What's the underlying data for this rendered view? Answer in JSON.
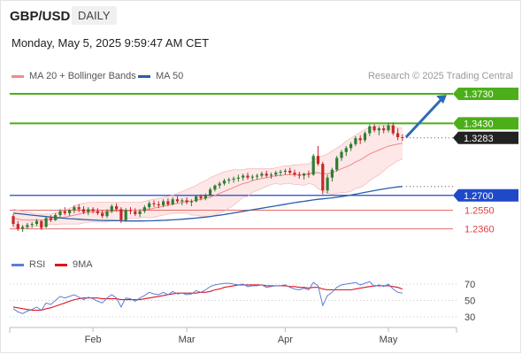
{
  "header": {
    "instrument": "GBP/USD",
    "timeframe": "DAILY",
    "datetime": "Monday, May 5, 2025 9:59:47 AM CET"
  },
  "legend": {
    "bb": {
      "label": "MA 20 + Bollinger Bands",
      "color": "#f08a8a"
    },
    "ma50": {
      "label": "MA 50",
      "color": "#2a5ea8"
    },
    "credit": "Research © 2025 Trading Central"
  },
  "rsi_legend": {
    "rsi": {
      "label": "RSI",
      "color": "#5b7fd6"
    },
    "ma9": {
      "label": "9MA",
      "color": "#e0151c"
    }
  },
  "colors": {
    "bull": "#2e7d32",
    "bear": "#c62828",
    "resistance": "#4caf1a",
    "support": "#1f49c8",
    "minor_support": "#e86b6b",
    "arrow": "#2d6bb5",
    "band_fill": "#fde4e4",
    "last_bg": "#222222"
  },
  "chart_data": {
    "type": "candlestick",
    "x_ticks": [
      "Feb",
      "Mar",
      "Apr",
      "May"
    ],
    "ohlc": [
      [
        1.249,
        1.251,
        1.238,
        1.241
      ],
      [
        1.241,
        1.244,
        1.234,
        1.236
      ],
      [
        1.236,
        1.24,
        1.233,
        1.238
      ],
      [
        1.238,
        1.242,
        1.236,
        1.24
      ],
      [
        1.24,
        1.243,
        1.237,
        1.241
      ],
      [
        1.241,
        1.246,
        1.239,
        1.244
      ],
      [
        1.244,
        1.245,
        1.235,
        1.237
      ],
      [
        1.238,
        1.248,
        1.237,
        1.247
      ],
      [
        1.247,
        1.25,
        1.243,
        1.245
      ],
      [
        1.245,
        1.252,
        1.244,
        1.25
      ],
      [
        1.25,
        1.256,
        1.248,
        1.254
      ],
      [
        1.254,
        1.258,
        1.25,
        1.252
      ],
      [
        1.252,
        1.256,
        1.249,
        1.255
      ],
      [
        1.255,
        1.26,
        1.252,
        1.258
      ],
      [
        1.258,
        1.261,
        1.253,
        1.256
      ],
      [
        1.256,
        1.259,
        1.251,
        1.253
      ],
      [
        1.253,
        1.258,
        1.25,
        1.256
      ],
      [
        1.256,
        1.258,
        1.252,
        1.254
      ],
      [
        1.254,
        1.257,
        1.25,
        1.252
      ],
      [
        1.252,
        1.255,
        1.247,
        1.249
      ],
      [
        1.249,
        1.256,
        1.247,
        1.254
      ],
      [
        1.254,
        1.261,
        1.252,
        1.259
      ],
      [
        1.259,
        1.262,
        1.254,
        1.256
      ],
      [
        1.256,
        1.258,
        1.242,
        1.245
      ],
      [
        1.245,
        1.257,
        1.243,
        1.255
      ],
      [
        1.255,
        1.258,
        1.251,
        1.254
      ],
      [
        1.254,
        1.257,
        1.249,
        1.251
      ],
      [
        1.251,
        1.256,
        1.248,
        1.254
      ],
      [
        1.254,
        1.26,
        1.252,
        1.258
      ],
      [
        1.258,
        1.264,
        1.256,
        1.262
      ],
      [
        1.262,
        1.265,
        1.258,
        1.261
      ],
      [
        1.261,
        1.264,
        1.257,
        1.26
      ],
      [
        1.26,
        1.266,
        1.258,
        1.264
      ],
      [
        1.264,
        1.267,
        1.259,
        1.261
      ],
      [
        1.261,
        1.268,
        1.26,
        1.266
      ],
      [
        1.266,
        1.269,
        1.262,
        1.264
      ],
      [
        1.264,
        1.267,
        1.26,
        1.265
      ],
      [
        1.265,
        1.268,
        1.261,
        1.263
      ],
      [
        1.263,
        1.266,
        1.259,
        1.264
      ],
      [
        1.264,
        1.27,
        1.263,
        1.269
      ],
      [
        1.269,
        1.271,
        1.265,
        1.267
      ],
      [
        1.267,
        1.272,
        1.265,
        1.27
      ],
      [
        1.27,
        1.278,
        1.269,
        1.276
      ],
      [
        1.276,
        1.281,
        1.274,
        1.28
      ],
      [
        1.28,
        1.284,
        1.277,
        1.282
      ],
      [
        1.282,
        1.287,
        1.28,
        1.285
      ],
      [
        1.285,
        1.288,
        1.282,
        1.286
      ],
      [
        1.286,
        1.289,
        1.283,
        1.287
      ],
      [
        1.287,
        1.291,
        1.284,
        1.288
      ],
      [
        1.288,
        1.292,
        1.285,
        1.29
      ],
      [
        1.29,
        1.293,
        1.286,
        1.288
      ],
      [
        1.288,
        1.291,
        1.285,
        1.289
      ],
      [
        1.289,
        1.292,
        1.286,
        1.29
      ],
      [
        1.29,
        1.294,
        1.288,
        1.292
      ],
      [
        1.292,
        1.295,
        1.288,
        1.29
      ],
      [
        1.29,
        1.293,
        1.287,
        1.291
      ],
      [
        1.291,
        1.295,
        1.289,
        1.293
      ],
      [
        1.293,
        1.296,
        1.29,
        1.294
      ],
      [
        1.294,
        1.297,
        1.291,
        1.295
      ],
      [
        1.295,
        1.298,
        1.291,
        1.293
      ],
      [
        1.293,
        1.296,
        1.289,
        1.291
      ],
      [
        1.291,
        1.294,
        1.287,
        1.29
      ],
      [
        1.29,
        1.293,
        1.286,
        1.292
      ],
      [
        1.292,
        1.295,
        1.288,
        1.291
      ],
      [
        1.291,
        1.312,
        1.29,
        1.31
      ],
      [
        1.31,
        1.32,
        1.3,
        1.302
      ],
      [
        1.302,
        1.304,
        1.271,
        1.275
      ],
      [
        1.275,
        1.291,
        1.272,
        1.288
      ],
      [
        1.288,
        1.298,
        1.284,
        1.296
      ],
      [
        1.296,
        1.31,
        1.294,
        1.308
      ],
      [
        1.308,
        1.316,
        1.305,
        1.314
      ],
      [
        1.314,
        1.32,
        1.31,
        1.318
      ],
      [
        1.318,
        1.324,
        1.315,
        1.322
      ],
      [
        1.322,
        1.33,
        1.32,
        1.328
      ],
      [
        1.328,
        1.331,
        1.322,
        1.326
      ],
      [
        1.326,
        1.335,
        1.324,
        1.333
      ],
      [
        1.333,
        1.342,
        1.33,
        1.34
      ],
      [
        1.34,
        1.342,
        1.334,
        1.336
      ],
      [
        1.336,
        1.34,
        1.331,
        1.338
      ],
      [
        1.338,
        1.341,
        1.333,
        1.336
      ],
      [
        1.336,
        1.344,
        1.334,
        1.341
      ],
      [
        1.341,
        1.344,
        1.331,
        1.333
      ],
      [
        1.333,
        1.338,
        1.326,
        1.329
      ],
      [
        1.329,
        1.332,
        1.325,
        1.3283
      ]
    ],
    "ma20": [
      1.247,
      1.246,
      1.245,
      1.245,
      1.245,
      1.245,
      1.245,
      1.245,
      1.246,
      1.246,
      1.247,
      1.248,
      1.249,
      1.25,
      1.251,
      1.252,
      1.253,
      1.253,
      1.253,
      1.253,
      1.253,
      1.254,
      1.254,
      1.254,
      1.254,
      1.255,
      1.255,
      1.255,
      1.256,
      1.256,
      1.257,
      1.258,
      1.259,
      1.26,
      1.261,
      1.262,
      1.263,
      1.264,
      1.264,
      1.265,
      1.266,
      1.267,
      1.268,
      1.27,
      1.272,
      1.274,
      1.276,
      1.278,
      1.28,
      1.282,
      1.283,
      1.285,
      1.286,
      1.287,
      1.288,
      1.289,
      1.29,
      1.29,
      1.291,
      1.291,
      1.291,
      1.291,
      1.291,
      1.292,
      1.293,
      1.293,
      1.292,
      1.292,
      1.293,
      1.295,
      1.297,
      1.299,
      1.301,
      1.304,
      1.306,
      1.309,
      1.312,
      1.314,
      1.316,
      1.318,
      1.32,
      1.321,
      1.322,
      1.3228
    ],
    "bb_upper": [
      1.256,
      1.255,
      1.254,
      1.253,
      1.252,
      1.251,
      1.251,
      1.251,
      1.251,
      1.252,
      1.253,
      1.255,
      1.257,
      1.259,
      1.261,
      1.262,
      1.263,
      1.263,
      1.263,
      1.263,
      1.263,
      1.263,
      1.263,
      1.263,
      1.263,
      1.263,
      1.263,
      1.263,
      1.264,
      1.265,
      1.266,
      1.267,
      1.268,
      1.269,
      1.27,
      1.272,
      1.274,
      1.276,
      1.278,
      1.28,
      1.283,
      1.285,
      1.288,
      1.29,
      1.292,
      1.294,
      1.295,
      1.296,
      1.296,
      1.296,
      1.297,
      1.297,
      1.297,
      1.297,
      1.297,
      1.297,
      1.298,
      1.299,
      1.3,
      1.3,
      1.301,
      1.301,
      1.302,
      1.302,
      1.305,
      1.309,
      1.31,
      1.312,
      1.315,
      1.318,
      1.321,
      1.325,
      1.328,
      1.331,
      1.334,
      1.337,
      1.339,
      1.34,
      1.341,
      1.341,
      1.341,
      1.34,
      1.339,
      1.338
    ],
    "bb_lower": [
      1.238,
      1.237,
      1.236,
      1.237,
      1.238,
      1.239,
      1.239,
      1.239,
      1.241,
      1.24,
      1.241,
      1.241,
      1.241,
      1.241,
      1.241,
      1.242,
      1.243,
      1.243,
      1.243,
      1.243,
      1.243,
      1.245,
      1.245,
      1.245,
      1.245,
      1.247,
      1.247,
      1.247,
      1.248,
      1.247,
      1.248,
      1.249,
      1.25,
      1.251,
      1.252,
      1.252,
      1.252,
      1.252,
      1.25,
      1.25,
      1.249,
      1.249,
      1.248,
      1.25,
      1.252,
      1.254,
      1.257,
      1.26,
      1.264,
      1.268,
      1.269,
      1.273,
      1.275,
      1.277,
      1.279,
      1.281,
      1.282,
      1.281,
      1.282,
      1.282,
      1.281,
      1.281,
      1.28,
      1.282,
      1.281,
      1.277,
      1.274,
      1.272,
      1.271,
      1.272,
      1.273,
      1.273,
      1.274,
      1.277,
      1.278,
      1.281,
      1.285,
      1.288,
      1.291,
      1.295,
      1.299,
      1.302,
      1.305,
      1.307
    ],
    "ma50": [
      1.252,
      1.2515,
      1.251,
      1.2505,
      1.25,
      1.2495,
      1.249,
      1.2485,
      1.248,
      1.2476,
      1.2472,
      1.2468,
      1.2464,
      1.2461,
      1.2458,
      1.2455,
      1.2452,
      1.245,
      1.2448,
      1.2446,
      1.2445,
      1.2444,
      1.2443,
      1.2442,
      1.2441,
      1.244,
      1.244,
      1.244,
      1.2441,
      1.2442,
      1.2443,
      1.2445,
      1.2447,
      1.2449,
      1.2452,
      1.2455,
      1.2458,
      1.2462,
      1.2466,
      1.247,
      1.2475,
      1.248,
      1.2486,
      1.2492,
      1.2499,
      1.2506,
      1.2514,
      1.2522,
      1.253,
      1.2538,
      1.2546,
      1.2554,
      1.2562,
      1.257,
      1.2578,
      1.2586,
      1.2594,
      1.2602,
      1.261,
      1.2618,
      1.2626,
      1.2633,
      1.264,
      1.2647,
      1.2654,
      1.266,
      1.2665,
      1.267,
      1.2675,
      1.2681,
      1.2688,
      1.2695,
      1.2703,
      1.2712,
      1.2721,
      1.273,
      1.2739,
      1.2748,
      1.2757,
      1.2765,
      1.2773,
      1.278,
      1.2786,
      1.279
    ],
    "rsi": [
      40,
      36,
      34,
      37,
      39,
      42,
      38,
      47,
      45,
      50,
      55,
      53,
      55,
      57,
      54,
      51,
      54,
      52,
      49,
      47,
      53,
      57,
      53,
      42,
      53,
      52,
      49,
      53,
      56,
      60,
      58,
      57,
      60,
      57,
      61,
      58,
      59,
      57,
      58,
      62,
      60,
      63,
      67,
      69,
      70,
      71,
      71,
      70,
      69,
      70,
      67,
      68,
      68,
      69,
      66,
      67,
      68,
      68,
      69,
      66,
      64,
      63,
      65,
      63,
      72,
      68,
      44,
      56,
      60,
      66,
      69,
      70,
      71,
      72,
      69,
      71,
      73,
      67,
      69,
      67,
      70,
      64,
      60,
      59
    ],
    "rsi_ma": [
      42,
      41,
      40,
      39,
      38,
      38,
      38,
      40,
      41,
      43,
      45,
      47,
      49,
      51,
      52,
      53,
      53,
      53,
      53,
      52,
      52,
      52,
      52,
      51,
      51,
      51,
      51,
      51,
      52,
      53,
      54,
      55,
      56,
      57,
      58,
      59,
      59,
      59,
      59,
      59,
      60,
      60,
      61,
      63,
      64,
      66,
      67,
      68,
      69,
      69,
      69,
      69,
      69,
      69,
      68,
      68,
      68,
      68,
      68,
      67,
      67,
      66,
      66,
      65,
      66,
      66,
      64,
      63,
      63,
      63,
      63,
      63,
      63,
      64,
      65,
      66,
      67,
      68,
      68,
      68,
      68,
      67,
      66,
      64
    ],
    "levels": [
      {
        "label": "1.3730",
        "value": 1.373,
        "kind": "resistance"
      },
      {
        "label": "1.3430",
        "value": 1.343,
        "kind": "resistance"
      },
      {
        "label": "1.3283",
        "value": 1.3283,
        "kind": "last"
      },
      {
        "label": "1.2700",
        "value": 1.27,
        "kind": "support"
      },
      {
        "label": "1.2550",
        "value": 1.255,
        "kind": "minor_support"
      },
      {
        "label": "1.2360",
        "value": 1.236,
        "kind": "minor_support"
      }
    ],
    "rsi_levels": [
      "70",
      "50",
      "30"
    ],
    "ylim_price": [
      1.233,
      1.373
    ],
    "ylim_rsi": [
      30,
      70
    ]
  }
}
